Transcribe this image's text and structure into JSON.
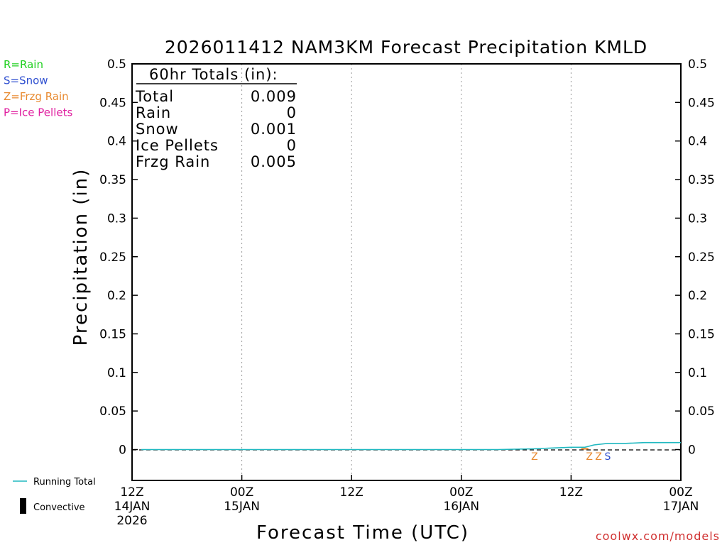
{
  "chart_data": {
    "type": "line",
    "title": "2026011412 NAM3KM Forecast Precipitation KMLD",
    "xlabel": "Forecast Time (UTC)",
    "ylabel": "Precipitation (in)",
    "ylim": [
      -0.04,
      0.5
    ],
    "xlim_hours": [
      0,
      60
    ],
    "y_ticks": [
      "0",
      "0.05",
      "0.1",
      "0.15",
      "0.2",
      "0.25",
      "0.3",
      "0.35",
      "0.4",
      "0.45",
      "0.5"
    ],
    "y_tick_values": [
      0,
      0.05,
      0.1,
      0.15,
      0.2,
      0.25,
      0.3,
      0.35,
      0.4,
      0.45,
      0.5
    ],
    "x_ticks": [
      {
        "hour": 0,
        "line1": "12Z",
        "line2": "14JAN",
        "line3": "2026"
      },
      {
        "hour": 12,
        "line1": "00Z",
        "line2": "15JAN",
        "line3": ""
      },
      {
        "hour": 24,
        "line1": "12Z",
        "line2": "",
        "line3": ""
      },
      {
        "hour": 36,
        "line1": "00Z",
        "line2": "16JAN",
        "line3": ""
      },
      {
        "hour": 48,
        "line1": "12Z",
        "line2": "",
        "line3": ""
      },
      {
        "hour": 60,
        "line1": "00Z",
        "line2": "17JAN",
        "line3": ""
      }
    ],
    "grid": "vertical dotted",
    "series": [
      {
        "name": "Running Total",
        "color": "#20b8c0",
        "x": [
          1,
          40,
          44,
          46,
          48,
          49.5,
          50.5,
          52,
          54,
          56,
          58,
          60
        ],
        "y": [
          0,
          0,
          0.001,
          0.002,
          0.003,
          0.003,
          0.006,
          0.008,
          0.008,
          0.009,
          0.009,
          0.009
        ]
      }
    ],
    "convective_bars": [
      {
        "hour": 49.5,
        "value": 0.002
      }
    ],
    "precip_type_markers": [
      {
        "hour": 44,
        "letter": "Z",
        "color": "#e88a30"
      },
      {
        "hour": 50,
        "letter": "Z",
        "color": "#e88a30"
      },
      {
        "hour": 51,
        "letter": "Z",
        "color": "#e88a30"
      },
      {
        "hour": 52,
        "letter": "S",
        "color": "#3050d0"
      }
    ],
    "type_legend": [
      {
        "label": "R=Rain",
        "color": "#20d020"
      },
      {
        "label": "S=Snow",
        "color": "#3050d0"
      },
      {
        "label": "Z=Frzg Rain",
        "color": "#e88a30"
      },
      {
        "label": "P=Ice Pellets",
        "color": "#e020a0"
      }
    ],
    "series_legend": [
      {
        "label": "Running Total",
        "color": "#20b8c0",
        "kind": "line"
      },
      {
        "label": "Convective",
        "color": "#000000",
        "kind": "bar"
      }
    ],
    "totals": {
      "header": "60hr Totals (in):",
      "rows": [
        {
          "label": "Total",
          "value": "0.009"
        },
        {
          "label": "Rain",
          "value": "0"
        },
        {
          "label": "Snow",
          "value": "0.001"
        },
        {
          "label": "Ice Pellets",
          "value": "0"
        },
        {
          "label": "Frzg Rain",
          "value": "0.005"
        }
      ]
    },
    "credit": "coolwx.com/models"
  }
}
